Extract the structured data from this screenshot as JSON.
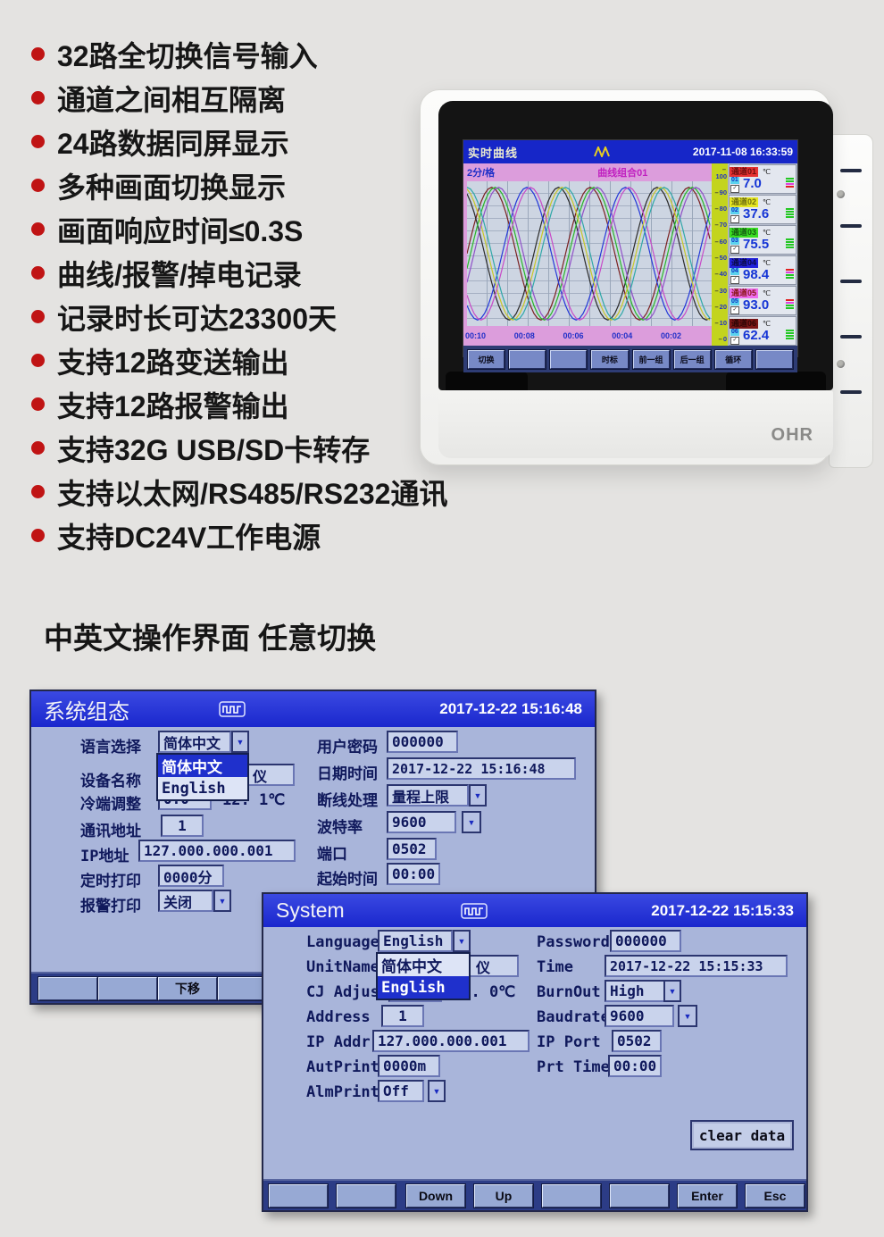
{
  "features": {
    "bullet_color": "#c01414",
    "items": [
      "32路全切换信号输入",
      "通道之间相互隔离",
      "24路数据同屏显示",
      "多种画面切换显示",
      "画面响应时间≤0.3S",
      "曲线/报警/掉电记录",
      "记录时长可达23300天",
      "支持12路变送输出",
      "支持12路报警输出",
      "支持32G USB/SD卡转存",
      "支持以太网/RS485/RS232通讯",
      "支持DC24V工作电源"
    ]
  },
  "section_heading": "中英文操作界面 任意切换",
  "device": {
    "brand": "OHR",
    "screen": {
      "title": "实时曲线",
      "datetime": "2017-11-08 16:33:59",
      "interval_label": "2分/格",
      "group_label": "曲线组合01",
      "x_ticks": [
        "00:10",
        "00:08",
        "00:06",
        "00:04",
        "00:02"
      ],
      "y_ticks": [
        "100",
        "90",
        "80",
        "70",
        "60",
        "50",
        "40",
        "30",
        "20",
        "10",
        "0"
      ],
      "softkeys": [
        "切换",
        "",
        "",
        "时标",
        "前一组",
        "后一组",
        "循环",
        ""
      ],
      "curve_colors": [
        "#7a2020",
        "#2a2a2a",
        "#2438d8",
        "#28b828",
        "#c8c828",
        "#c84ac8",
        "#9050c8",
        "#30a8a8"
      ],
      "channels": [
        {
          "name": "通道01",
          "unit": "℃",
          "num": "01",
          "value": "7.0",
          "name_bg": "#e63232",
          "name_fg": "#6d0f0f",
          "bars": [
            "#22c722",
            "#22c722",
            "#e040e0",
            "#e02020"
          ]
        },
        {
          "name": "通道02",
          "unit": "℃",
          "num": "02",
          "value": "37.6",
          "name_bg": "#e6e622",
          "name_fg": "#6e6e10",
          "bars": [
            "#22c722",
            "#22c722",
            "#22c722",
            "#22c722"
          ]
        },
        {
          "name": "通道03",
          "unit": "℃",
          "num": "03",
          "value": "75.5",
          "name_bg": "#3ade22",
          "name_fg": "#145c12",
          "bars": [
            "#22c722",
            "#22c722",
            "#22c722",
            "#22c722"
          ]
        },
        {
          "name": "通道04",
          "unit": "℃",
          "num": "04",
          "value": "98.4",
          "name_bg": "#2222dc",
          "name_fg": "#0a0a46",
          "bars": [
            "#e02020",
            "#e040e0",
            "#22c722",
            "#22c722"
          ]
        },
        {
          "name": "通道05",
          "unit": "℃",
          "num": "05",
          "value": "93.0",
          "name_bg": "#ee6cee",
          "name_fg": "#8a1414",
          "bars": [
            "#e02020",
            "#e040e0",
            "#22c722",
            "#22c722"
          ]
        },
        {
          "name": "通道06",
          "unit": "℃",
          "num": "06",
          "value": "62.4",
          "name_bg": "#7c1616",
          "name_fg": "#2e0606",
          "bars": [
            "#22c722",
            "#22c722",
            "#22c722",
            "#22c722"
          ]
        }
      ]
    }
  },
  "cn_window": {
    "title": "系统组态",
    "datetime": "2017-12-22 15:16:48",
    "left": {
      "language_label": "语言选择",
      "language_value": "简体中文",
      "language_options": [
        "简体中文",
        "English"
      ],
      "unitname_label": "设备名称",
      "unitname_value": "仪",
      "cj_label": "冷端调整",
      "cj_value": "0.0",
      "cj_suffix": "12. 1℃",
      "addr_label": "通讯地址",
      "addr_value": "1",
      "ip_label": "IP地址",
      "ip_value": "127.000.000.001",
      "autprint_label": "定时打印",
      "autprint_value": "0000分",
      "almprint_label": "报警打印",
      "almprint_value": "关闭"
    },
    "right": {
      "password_label": "用户密码",
      "password_value": "000000",
      "time_label": "日期时间",
      "time_value": "2017-12-22 15:16:48",
      "burnout_label": "断线处理",
      "burnout_value": "量程上限",
      "baud_label": "波特率",
      "baud_value": "9600",
      "port_label": "端口",
      "port_value": "0502",
      "start_label": "起始时间",
      "start_value": "00:00"
    },
    "softkeys": [
      "",
      "",
      "下移",
      ""
    ]
  },
  "en_window": {
    "title": "System",
    "datetime": "2017-12-22 15:15:33",
    "left": {
      "language_label": "Language",
      "language_value": "English",
      "language_options": [
        "简体中文",
        "English"
      ],
      "unitname_label": "UnitName",
      "unitname_value": "仪",
      "cj_label": "CJ Adjust",
      "cj_value": "0.0",
      "cj_suffix": "12. 0℃",
      "addr_label": "Address",
      "addr_value": "1",
      "ip_label": "IP Addr",
      "ip_value": "127.000.000.001",
      "autprint_label": "AutPrint",
      "autprint_value": "0000m",
      "almprint_label": "AlmPrint",
      "almprint_value": "Off"
    },
    "right": {
      "password_label": "Password",
      "password_value": "000000",
      "time_label": "Time",
      "time_value": "2017-12-22 15:15:33",
      "burnout_label": "BurnOut",
      "burnout_value": "High",
      "baud_label": "Baudrate",
      "baud_value": "9600",
      "port_label": "IP Port",
      "port_value": "0502",
      "start_label": "Prt Time",
      "start_value": "00:00"
    },
    "clear_button": "clear data",
    "softkeys": [
      "",
      "",
      "Down",
      "Up",
      "",
      "",
      "Enter",
      "Esc"
    ]
  }
}
